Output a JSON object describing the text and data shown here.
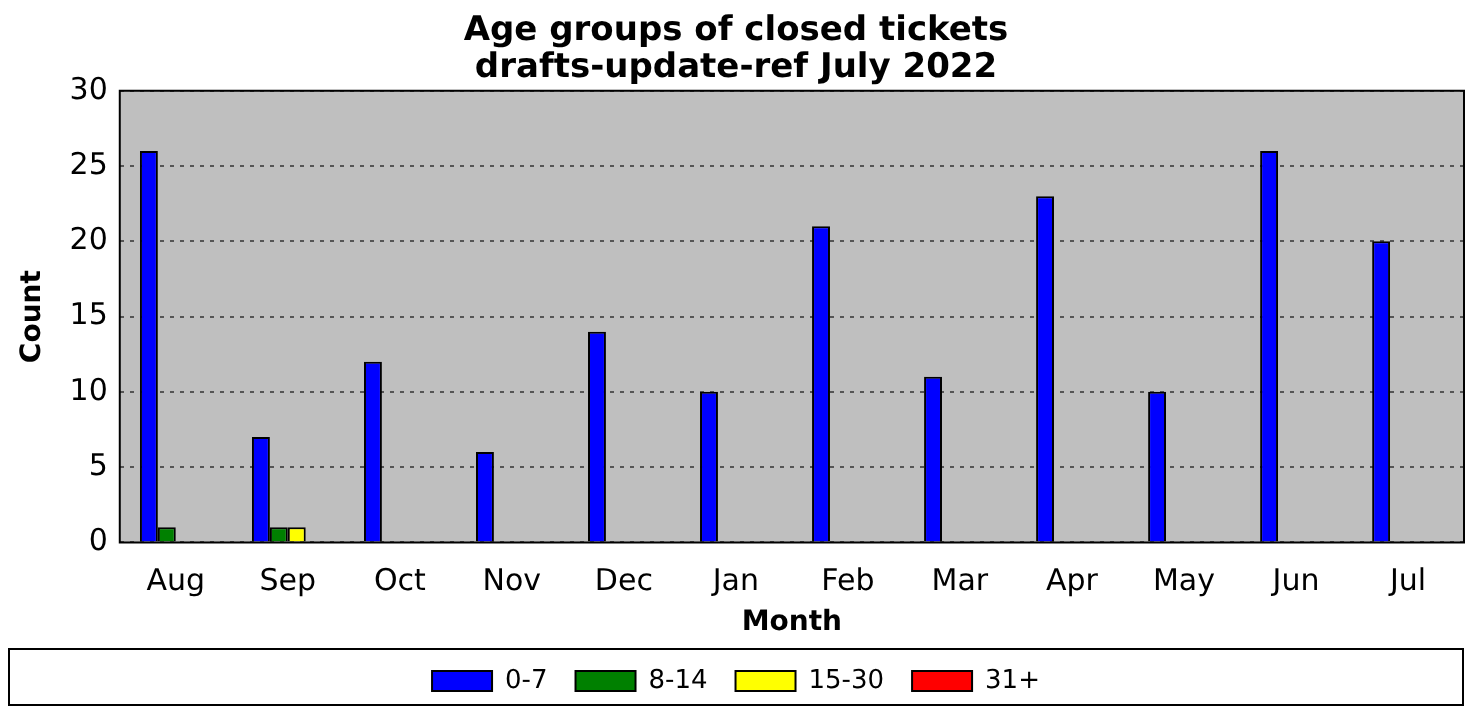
{
  "chart_data": {
    "type": "bar",
    "title": "Age groups of closed tickets\ndrafts-update-ref July 2022",
    "xlabel": "Month",
    "ylabel": "Count",
    "categories": [
      "Aug",
      "Sep",
      "Oct",
      "Nov",
      "Dec",
      "Jan",
      "Feb",
      "Mar",
      "Apr",
      "May",
      "Jun",
      "Jul"
    ],
    "series": [
      {
        "name": "0-7",
        "color": "#0000ff",
        "values": [
          26,
          7,
          12,
          6,
          14,
          10,
          21,
          11,
          23,
          10,
          26,
          20
        ]
      },
      {
        "name": "8-14",
        "color": "#008000",
        "values": [
          1,
          1,
          0,
          0,
          0,
          0,
          0,
          0,
          0,
          0,
          0,
          0
        ]
      },
      {
        "name": "15-30",
        "color": "#ffff00",
        "values": [
          0,
          1,
          0,
          0,
          0,
          0,
          0,
          0,
          0,
          0,
          0,
          0
        ]
      },
      {
        "name": "31+",
        "color": "#ff0000",
        "values": [
          0,
          0,
          0,
          0,
          0,
          0,
          0,
          0,
          0,
          0,
          0,
          0
        ]
      }
    ],
    "ylim": [
      0,
      30
    ],
    "yticks": [
      0,
      5,
      10,
      15,
      20,
      25,
      30
    ],
    "grid": "y",
    "legend": "bottom"
  }
}
